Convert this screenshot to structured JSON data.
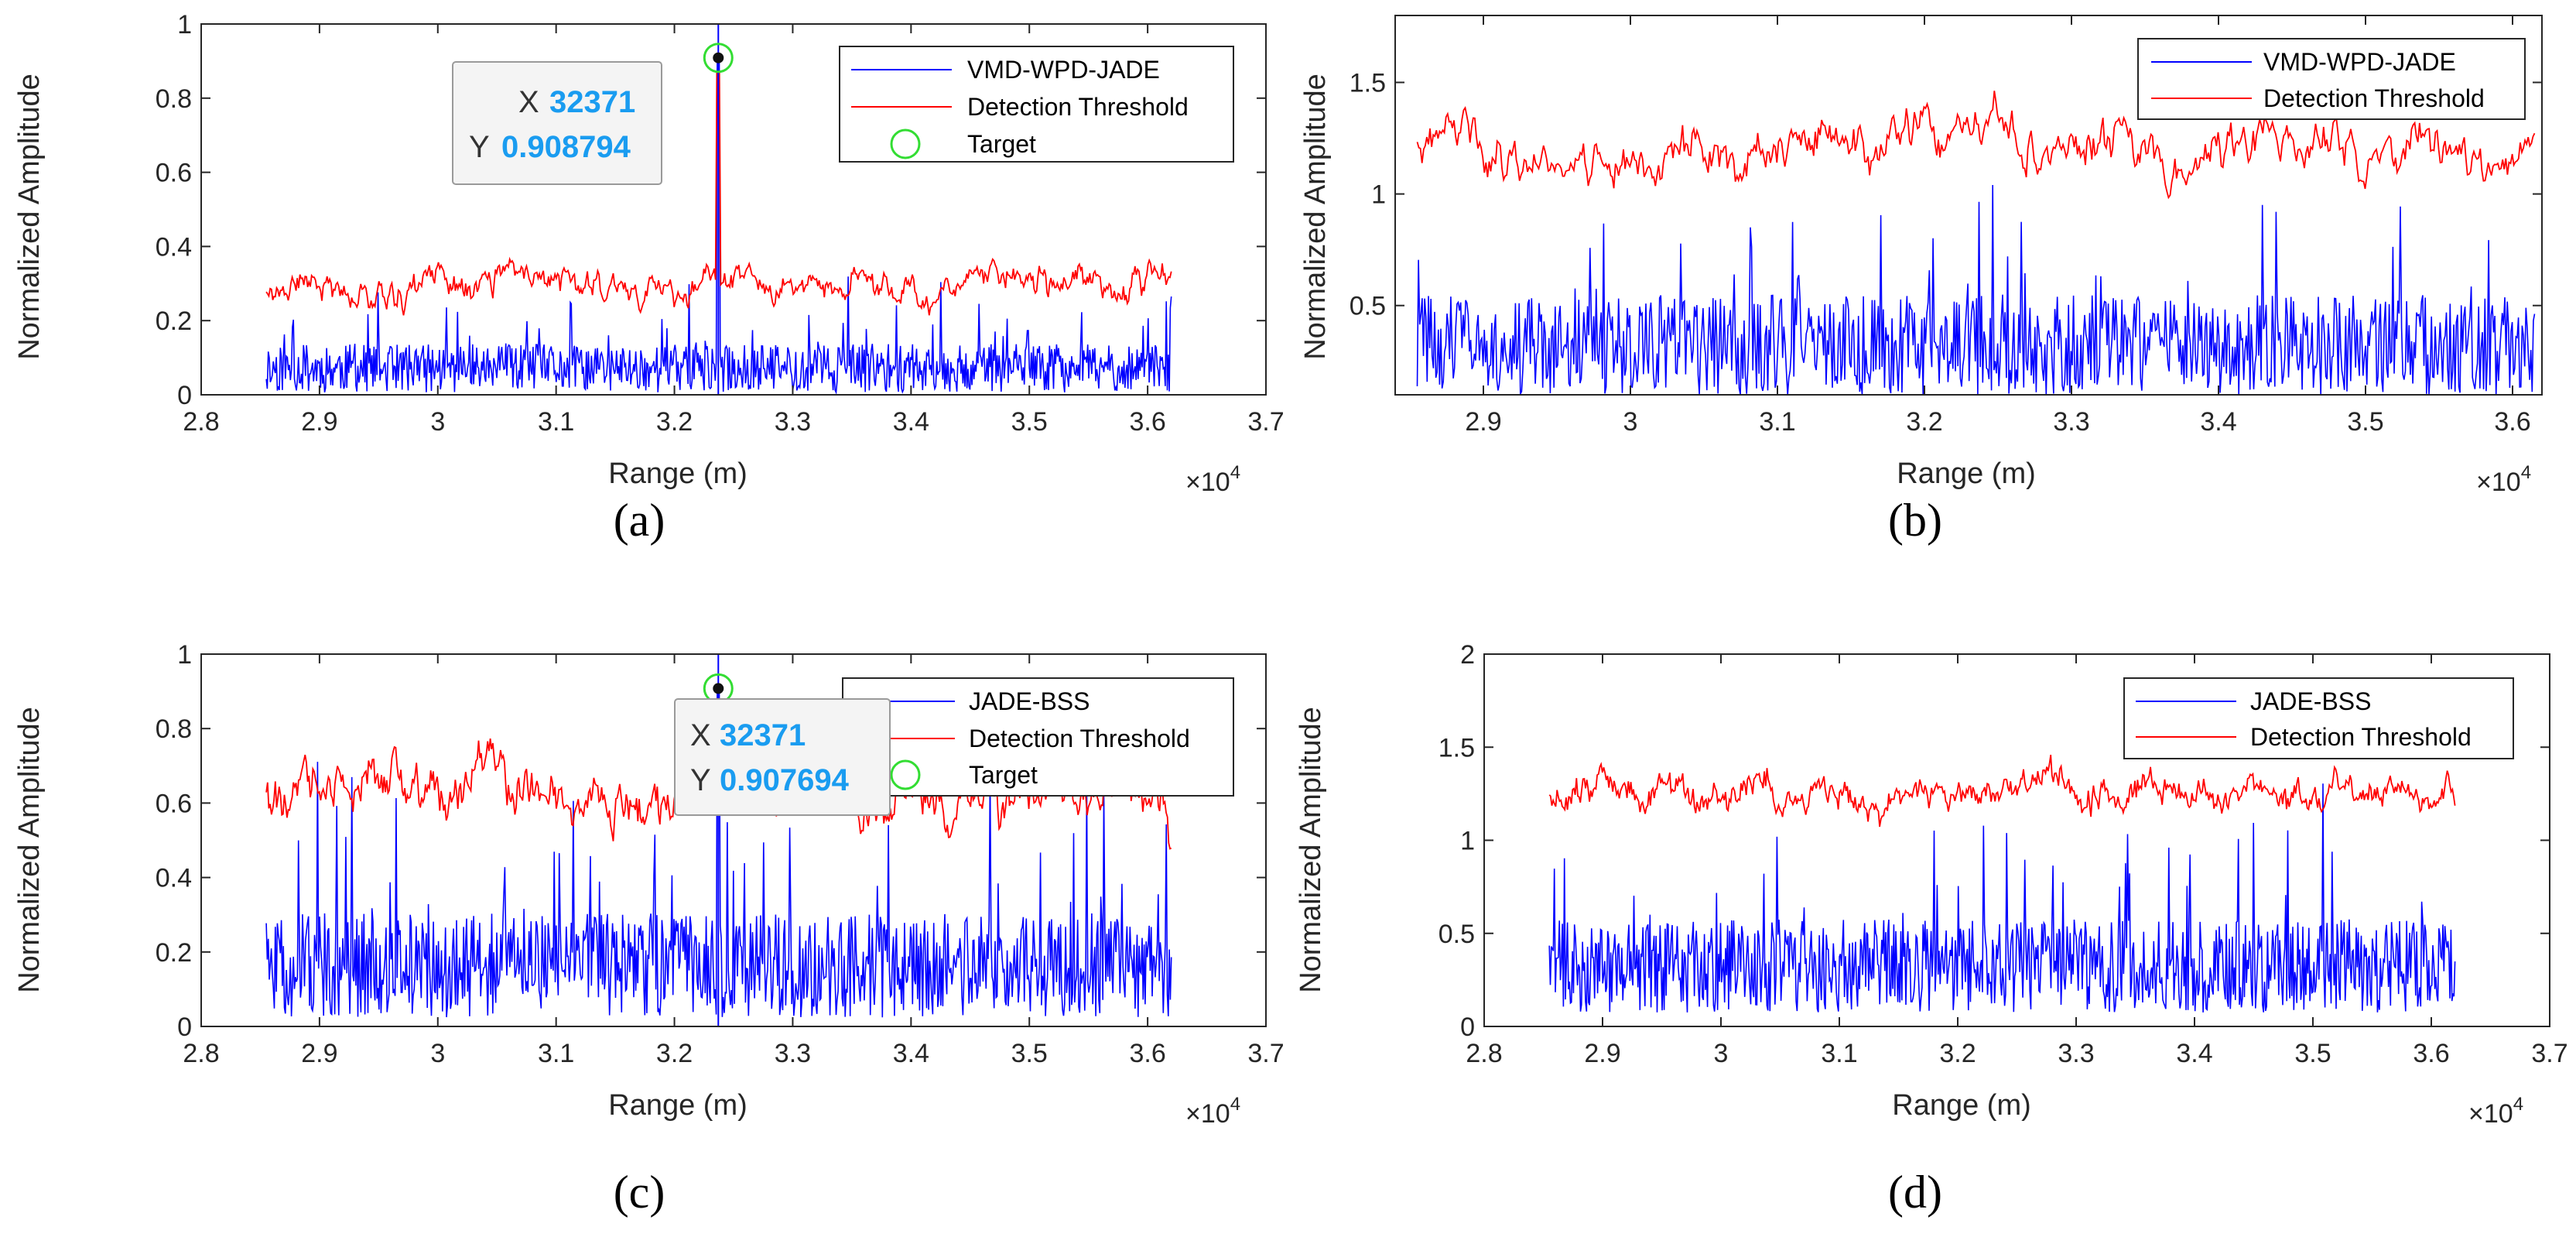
{
  "colors": {
    "signal": "#0000ff",
    "threshold": "#ff0000",
    "target": "#33dd33",
    "datatip_value": "#1a9cf0"
  },
  "panel_labels": [
    "(a)",
    "(b)",
    "(c)",
    "(d)"
  ],
  "chart_data": [
    {
      "id": "a",
      "type": "line",
      "xlabel": "Range (m)",
      "ylabel": "Normalized Amplitude",
      "x_exponent_label": "×10",
      "x_exponent_power": "4",
      "xlim": [
        2.8,
        3.7
      ],
      "ylim": [
        0,
        1
      ],
      "xticks": [
        "2.8",
        "2.9",
        "3",
        "3.1",
        "3.2",
        "3.3",
        "3.4",
        "3.5",
        "3.6",
        "3.7"
      ],
      "yticks": [
        "0",
        "0.2",
        "0.4",
        "0.6",
        "0.8",
        "1"
      ],
      "x_range": [
        2.855,
        3.62
      ],
      "series": [
        {
          "name": "VMD-WPD-JADE",
          "kind": "signal",
          "baseline": 0.065,
          "spread": 0.13,
          "seed": 11
        },
        {
          "name": "Detection Threshold",
          "kind": "threshold",
          "baseline": 0.3,
          "spread": 0.17,
          "seed": 21
        }
      ],
      "target": {
        "name": "Target",
        "x": 3.2371,
        "y": 0.908794,
        "peak_threshold": 0.87
      },
      "datatip": {
        "x_key": "X",
        "x_value": "32371",
        "y_key": "Y",
        "y_value": "0.908794"
      }
    },
    {
      "id": "b",
      "type": "line",
      "xlabel": "Range (m)",
      "ylabel": "Normalized Amplitude",
      "x_exponent_label": "×10",
      "x_exponent_power": "4",
      "xlim": [
        2.84,
        3.62
      ],
      "ylim": [
        0.1,
        1.8
      ],
      "xticks": [
        "2.9",
        "3",
        "3.1",
        "3.2",
        "3.3",
        "3.4",
        "3.5",
        "3.6"
      ],
      "yticks": [
        "0.5",
        "1",
        "1.5"
      ],
      "x_range": [
        2.855,
        3.615
      ],
      "series": [
        {
          "name": "VMD-WPD-JADE",
          "kind": "signal",
          "baseline": 0.3,
          "spread": 0.45,
          "seed": 31
        },
        {
          "name": "Detection Threshold",
          "kind": "threshold",
          "baseline": 1.2,
          "spread": 0.45,
          "seed": 41
        }
      ]
    },
    {
      "id": "c",
      "type": "line",
      "xlabel": "Range (m)",
      "ylabel": "Normalized Amplitude",
      "x_exponent_label": "×10",
      "x_exponent_power": "4",
      "xlim": [
        2.8,
        3.7
      ],
      "ylim": [
        0,
        1
      ],
      "xticks": [
        "2.8",
        "2.9",
        "3",
        "3.1",
        "3.2",
        "3.3",
        "3.4",
        "3.5",
        "3.6",
        "3.7"
      ],
      "yticks": [
        "0",
        "0.2",
        "0.4",
        "0.6",
        "0.8",
        "1"
      ],
      "x_range": [
        2.855,
        3.62
      ],
      "series": [
        {
          "name": "JADE-BSS",
          "kind": "signal",
          "baseline": 0.15,
          "spread": 0.28,
          "seed": 51
        },
        {
          "name": "Detection Threshold",
          "kind": "threshold",
          "baseline": 0.62,
          "spread": 0.3,
          "seed": 61
        }
      ],
      "target": {
        "name": "Target",
        "x": 3.2371,
        "y": 0.907694,
        "peak_threshold": 0.88
      },
      "datatip": {
        "x_key": "X",
        "x_value": "32371",
        "y_key": "Y",
        "y_value": "0.907694"
      }
    },
    {
      "id": "d",
      "type": "line",
      "xlabel": "Range (m)",
      "ylabel": "Normalized Amplitude",
      "x_exponent_label": "×10",
      "x_exponent_power": "4",
      "xlim": [
        2.8,
        3.7
      ],
      "ylim": [
        0,
        2
      ],
      "xticks": [
        "2.8",
        "2.9",
        "3",
        "3.1",
        "3.2",
        "3.3",
        "3.4",
        "3.5",
        "3.6",
        "3.7"
      ],
      "yticks": [
        "0",
        "0.5",
        "1",
        "1.5",
        "2"
      ],
      "x_range": [
        2.855,
        3.62
      ],
      "series": [
        {
          "name": "JADE-BSS",
          "kind": "signal",
          "baseline": 0.3,
          "spread": 0.5,
          "seed": 71
        },
        {
          "name": "Detection Threshold",
          "kind": "threshold",
          "baseline": 1.25,
          "spread": 0.4,
          "seed": 81
        }
      ]
    }
  ]
}
